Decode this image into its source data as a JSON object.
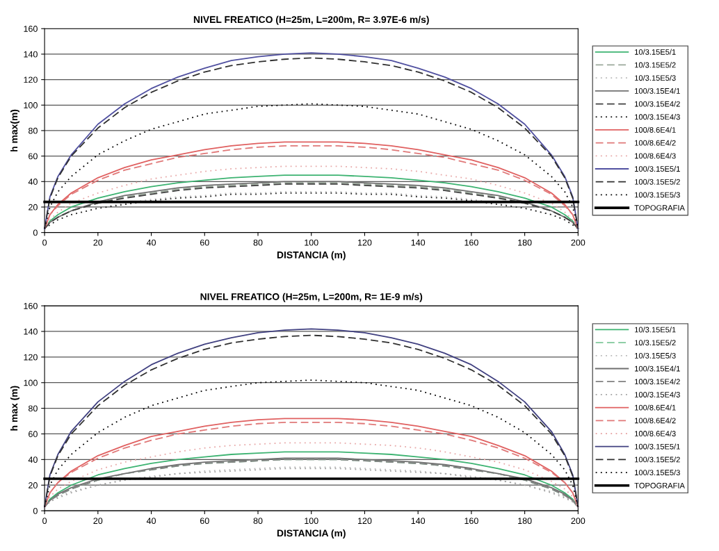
{
  "chart_data": [
    {
      "type": "line",
      "title": "NIVEL FREATICO (H=25m, L=200m, R= 3.97E-6 m/s)",
      "xlabel": "DISTANCIA (m)",
      "ylabel": "h max(m)",
      "x": [
        0,
        2,
        5,
        10,
        20,
        30,
        40,
        50,
        60,
        70,
        80,
        90,
        100,
        110,
        120,
        130,
        140,
        150,
        160,
        170,
        180,
        190,
        195,
        198,
        200
      ],
      "xlim": [
        0,
        200
      ],
      "xticks": [
        0,
        20,
        40,
        60,
        80,
        100,
        120,
        140,
        160,
        180,
        200
      ],
      "ylim": [
        0,
        160
      ],
      "yticks": [
        0,
        20,
        40,
        60,
        80,
        100,
        120,
        140,
        160
      ],
      "grid": "y",
      "legend": "right",
      "marker": "none",
      "series": [
        {
          "name": "10/3.15E5/1",
          "color": "#3cb371",
          "line_style": "solid",
          "values": [
            3,
            9,
            14,
            20,
            27,
            32,
            36,
            39,
            41,
            43,
            44,
            45,
            45,
            45,
            44,
            43,
            41,
            39,
            36,
            32,
            27,
            20,
            14,
            9,
            3
          ]
        },
        {
          "name": "10/3.15E5/2",
          "color": "#9aa89a",
          "line_style": "dashed",
          "values": [
            3,
            8,
            12,
            17,
            23,
            28,
            31,
            34,
            36,
            37,
            38,
            39,
            39,
            39,
            38,
            37,
            36,
            34,
            31,
            28,
            23,
            17,
            12,
            8,
            3
          ]
        },
        {
          "name": "10/3.15E5/3",
          "color": "#b8b8b8",
          "line_style": "dotted",
          "values": [
            3,
            6,
            10,
            14,
            19,
            23,
            26,
            28,
            29,
            31,
            31,
            32,
            32,
            32,
            31,
            31,
            29,
            28,
            26,
            23,
            19,
            14,
            10,
            6,
            3
          ]
        },
        {
          "name": "100/3.15E4/1",
          "color": "#707070",
          "line_style": "solid",
          "values": [
            3,
            8,
            12,
            17,
            24,
            29,
            32,
            35,
            37,
            38,
            39,
            40,
            40,
            40,
            39,
            38,
            37,
            35,
            32,
            29,
            24,
            17,
            12,
            8,
            3
          ]
        },
        {
          "name": "100/3.15E4/2",
          "color": "#404040",
          "line_style": "dashed",
          "values": [
            3,
            8,
            12,
            17,
            23,
            27,
            30,
            33,
            35,
            36,
            37,
            38,
            38,
            38,
            37,
            36,
            35,
            33,
            30,
            27,
            23,
            17,
            12,
            8,
            3
          ]
        },
        {
          "name": "100/3.15E4/3",
          "color": "#202020",
          "line_style": "dotted",
          "values": [
            3,
            6,
            10,
            14,
            19,
            22,
            25,
            27,
            28,
            30,
            30,
            31,
            31,
            31,
            30,
            30,
            28,
            27,
            25,
            22,
            19,
            14,
            10,
            6,
            3
          ]
        },
        {
          "name": "100/8.6E4/1",
          "color": "#e06060",
          "line_style": "solid",
          "values": [
            3,
            14,
            22,
            31,
            43,
            51,
            57,
            61,
            65,
            68,
            70,
            71,
            71,
            71,
            70,
            68,
            65,
            61,
            57,
            51,
            43,
            31,
            22,
            14,
            3
          ]
        },
        {
          "name": "100/8.6E4/2",
          "color": "#e07878",
          "line_style": "dashed",
          "values": [
            3,
            14,
            21,
            30,
            41,
            49,
            54,
            59,
            62,
            65,
            67,
            68,
            68,
            68,
            67,
            65,
            62,
            59,
            54,
            49,
            41,
            30,
            21,
            14,
            3
          ]
        },
        {
          "name": "100/8.6E4/3",
          "color": "#e8a8a8",
          "line_style": "dotted",
          "values": [
            3,
            10,
            16,
            23,
            31,
            37,
            42,
            45,
            48,
            50,
            51,
            52,
            52,
            52,
            51,
            50,
            48,
            45,
            42,
            37,
            31,
            23,
            16,
            10,
            3
          ]
        },
        {
          "name": "100/3.15E5/1",
          "color": "#5050a0",
          "line_style": "solid",
          "values": [
            3,
            28,
            44,
            61,
            85,
            101,
            113,
            122,
            129,
            135,
            138,
            140,
            141,
            140,
            138,
            135,
            129,
            122,
            113,
            101,
            85,
            61,
            44,
            28,
            3
          ]
        },
        {
          "name": "100/3.15E5/2",
          "color": "#303030",
          "line_style": "dashed",
          "values": [
            3,
            27,
            43,
            60,
            82,
            98,
            110,
            119,
            126,
            131,
            134,
            136,
            137,
            136,
            134,
            131,
            126,
            119,
            110,
            98,
            82,
            60,
            43,
            27,
            3
          ]
        },
        {
          "name": "100/3.15E5/3",
          "color": "#000000",
          "line_style": "dotted",
          "values": [
            3,
            20,
            32,
            44,
            61,
            72,
            81,
            87,
            93,
            96,
            99,
            100,
            101,
            100,
            99,
            96,
            93,
            87,
            81,
            72,
            61,
            44,
            32,
            20,
            3
          ]
        },
        {
          "name": "TOPOGRAFIA",
          "color": "#000000",
          "line_style": "solid",
          "values": [
            24,
            24,
            24,
            24,
            24,
            24,
            24,
            24,
            24,
            24,
            24,
            24,
            24,
            24,
            24,
            24,
            24,
            24,
            24,
            24,
            24,
            24,
            24,
            24,
            24
          ]
        }
      ]
    },
    {
      "type": "line",
      "title": "NIVEL FREATICO (H=25m, L=200m, R= 1E-9 m/s)",
      "xlabel": "DISTANCIA (m)",
      "ylabel": "h max (m)",
      "x": [
        0,
        2,
        5,
        10,
        20,
        30,
        40,
        50,
        60,
        70,
        80,
        90,
        100,
        110,
        120,
        130,
        140,
        150,
        160,
        170,
        180,
        190,
        195,
        198,
        200
      ],
      "xlim": [
        0,
        200
      ],
      "xticks": [
        0,
        20,
        40,
        60,
        80,
        100,
        120,
        140,
        160,
        180,
        200
      ],
      "ylim": [
        0,
        160
      ],
      "yticks": [
        0,
        20,
        40,
        60,
        80,
        100,
        120,
        140,
        160
      ],
      "grid": "y",
      "legend": "right",
      "marker": "none",
      "series": [
        {
          "name": "10/3.15E5/1",
          "color": "#3cb371",
          "line_style": "solid",
          "values": [
            3,
            9,
            14,
            20,
            28,
            33,
            37,
            40,
            42,
            44,
            45,
            46,
            46,
            46,
            45,
            44,
            42,
            40,
            37,
            33,
            28,
            20,
            14,
            9,
            3
          ]
        },
        {
          "name": "10/3.15E5/2",
          "color": "#7fc89a",
          "line_style": "dashed",
          "values": [
            3,
            8,
            12,
            17,
            24,
            29,
            32,
            35,
            37,
            38,
            39,
            40,
            40,
            40,
            39,
            38,
            37,
            35,
            32,
            29,
            24,
            17,
            12,
            8,
            3
          ]
        },
        {
          "name": "10/3.15E5/3",
          "color": "#b8b8b8",
          "line_style": "dotted",
          "values": [
            3,
            7,
            11,
            15,
            20,
            24,
            27,
            29,
            31,
            32,
            33,
            34,
            34,
            34,
            33,
            32,
            31,
            29,
            27,
            24,
            20,
            15,
            11,
            7,
            3
          ]
        },
        {
          "name": "100/3.15E4/1",
          "color": "#707070",
          "line_style": "solid",
          "values": [
            3,
            8,
            13,
            18,
            25,
            29,
            33,
            36,
            38,
            39,
            40,
            41,
            41,
            41,
            40,
            39,
            38,
            36,
            33,
            29,
            25,
            18,
            13,
            8,
            3
          ]
        },
        {
          "name": "100/3.15E4/2",
          "color": "#808080",
          "line_style": "dashed",
          "values": [
            3,
            8,
            12,
            17,
            24,
            29,
            32,
            35,
            37,
            38,
            39,
            40,
            40,
            40,
            39,
            38,
            37,
            35,
            32,
            29,
            24,
            17,
            12,
            8,
            3
          ]
        },
        {
          "name": "100/3.15E4/3",
          "color": "#a0a0a0",
          "line_style": "dotted",
          "values": [
            3,
            7,
            10,
            14,
            20,
            24,
            26,
            29,
            30,
            31,
            32,
            33,
            33,
            33,
            32,
            31,
            30,
            29,
            26,
            24,
            20,
            14,
            10,
            7,
            3
          ]
        },
        {
          "name": "100/8.6E4/1",
          "color": "#e06060",
          "line_style": "solid",
          "values": [
            3,
            14,
            22,
            31,
            43,
            51,
            58,
            62,
            66,
            69,
            71,
            72,
            72,
            72,
            71,
            69,
            66,
            62,
            58,
            51,
            43,
            31,
            22,
            14,
            3
          ]
        },
        {
          "name": "100/8.6E4/2",
          "color": "#e07878",
          "line_style": "dashed",
          "values": [
            3,
            14,
            22,
            30,
            41,
            49,
            55,
            60,
            63,
            66,
            68,
            69,
            69,
            69,
            68,
            66,
            63,
            60,
            55,
            49,
            41,
            30,
            22,
            14,
            3
          ]
        },
        {
          "name": "100/8.6E4/3",
          "color": "#e8a8a8",
          "line_style": "dotted",
          "values": [
            3,
            11,
            17,
            23,
            32,
            38,
            42,
            46,
            49,
            51,
            52,
            53,
            53,
            53,
            52,
            51,
            49,
            46,
            42,
            38,
            32,
            23,
            17,
            11,
            3
          ]
        },
        {
          "name": "100/3.15E5/1",
          "color": "#404080",
          "line_style": "solid",
          "values": [
            3,
            28,
            44,
            62,
            85,
            101,
            114,
            123,
            130,
            135,
            139,
            141,
            142,
            141,
            139,
            135,
            130,
            123,
            114,
            101,
            85,
            62,
            44,
            28,
            3
          ]
        },
        {
          "name": "100/3.15E5/2",
          "color": "#303030",
          "line_style": "dashed",
          "values": [
            3,
            27,
            43,
            60,
            82,
            98,
            110,
            119,
            126,
            131,
            134,
            136,
            137,
            136,
            134,
            131,
            126,
            119,
            110,
            98,
            82,
            60,
            43,
            27,
            3
          ]
        },
        {
          "name": "100/3.15E5/3",
          "color": "#000000",
          "line_style": "dotted",
          "values": [
            3,
            20,
            32,
            44,
            61,
            73,
            82,
            88,
            94,
            97,
            100,
            101,
            102,
            101,
            100,
            97,
            94,
            88,
            82,
            73,
            61,
            44,
            32,
            20,
            3
          ]
        },
        {
          "name": "TOPOGRAFIA",
          "color": "#000000",
          "line_style": "solid",
          "values": [
            25,
            25,
            25,
            25,
            25,
            25,
            25,
            25,
            25,
            25,
            25,
            25,
            25,
            25,
            25,
            25,
            25,
            25,
            25,
            25,
            25,
            25,
            25,
            25,
            25
          ]
        }
      ]
    }
  ]
}
